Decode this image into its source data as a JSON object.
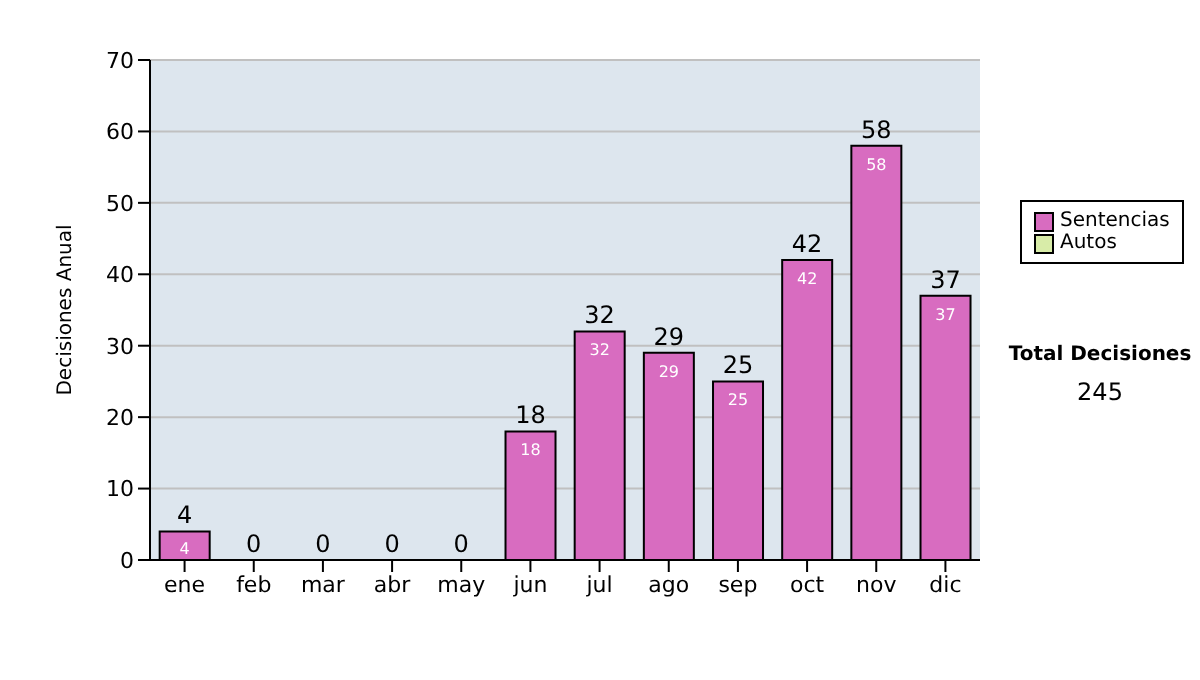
{
  "chart_data": {
    "type": "bar",
    "ylabel": "Decisiones Anual",
    "categories": [
      "ene",
      "feb",
      "mar",
      "abr",
      "may",
      "jun",
      "jul",
      "ago",
      "sep",
      "oct",
      "nov",
      "dic"
    ],
    "series": [
      {
        "name": "Sentencias",
        "color": "#d86cc0",
        "values": [
          4,
          0,
          0,
          0,
          0,
          18,
          32,
          29,
          25,
          42,
          58,
          37
        ],
        "value_labels": [
          "4",
          null,
          null,
          null,
          null,
          "18",
          "32",
          "29",
          "25",
          "42",
          "58",
          "37"
        ]
      },
      {
        "name": "Autos",
        "color": "#d8eca8",
        "values": [
          0,
          0,
          0,
          0,
          0,
          0,
          0,
          0,
          0,
          0,
          0,
          0
        ]
      }
    ],
    "stacked": true,
    "totals": [
      "4",
      "0",
      "0",
      "0",
      "0",
      "18",
      "32",
      "29",
      "25",
      "42",
      "58",
      "37"
    ],
    "ylim": [
      0,
      70
    ],
    "yticks": [
      0,
      10,
      20,
      30,
      40,
      50,
      60,
      70
    ],
    "grid": "y",
    "legend": "right",
    "annotations": [
      "Total Decisiones",
      "245"
    ]
  }
}
